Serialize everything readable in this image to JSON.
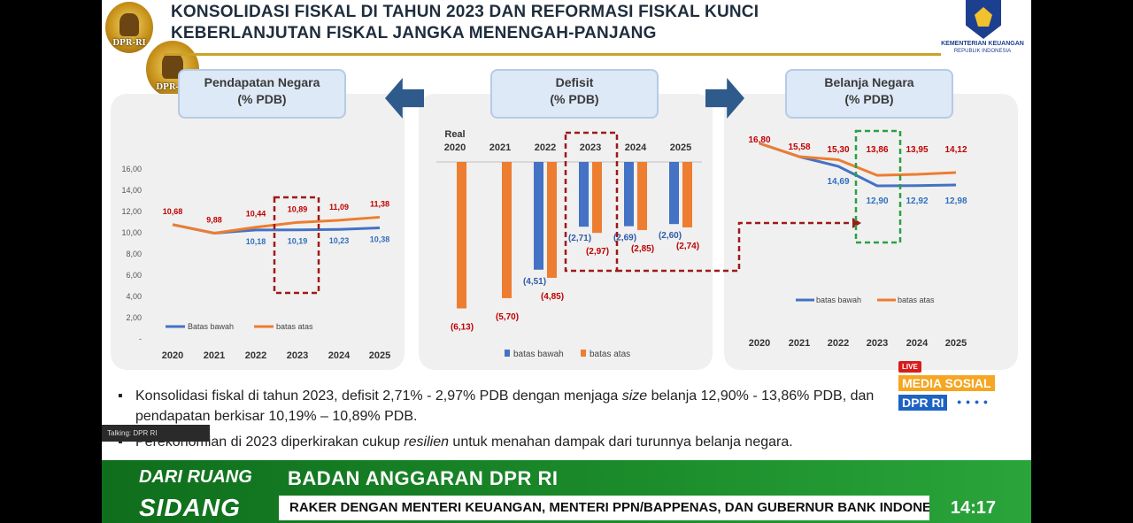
{
  "header": {
    "title_line1": "KONSOLIDASI FISKAL DI TAHUN 2023 DAN REFORMASI FISKAL KUNCI",
    "title_line2": "KEBERLANJUTAN FISKAL JANGKA MENENGAH-PANJANG",
    "seal_label": "DPR-RI",
    "ministry_line1": "KEMENTERIAN KEUANGAN",
    "ministry_line2": "REPUBLIK INDONESIA"
  },
  "panels": {
    "pendapatan_title_1": "Pendapatan Negara",
    "pendapatan_title_2": "(% PDB)",
    "defisit_title_1": "Defisit",
    "defisit_title_2": "(% PDB)",
    "belanja_title_1": "Belanja Negara",
    "belanja_title_2": "(% PDB)"
  },
  "chart_data": [
    {
      "type": "line",
      "name_ref": "Pendapatan Negara",
      "x": [
        "2020",
        "2021",
        "2022",
        "2023",
        "2024",
        "2025"
      ],
      "yticks": [
        "16,00",
        "14,00",
        "12,00",
        "10,00",
        "8,00",
        "6,00",
        "4,00",
        "2,00",
        "-"
      ],
      "ylim": [
        0,
        16
      ],
      "series": [
        {
          "name": "Batas bawah",
          "color": "#4472c4",
          "values": [
            10.68,
            9.88,
            10.18,
            10.19,
            10.23,
            10.38
          ],
          "labels": [
            "",
            "",
            "10,18",
            "10,19",
            "10,23",
            "10,38"
          ]
        },
        {
          "name": "batas atas",
          "color": "#ed7d31",
          "values": [
            10.68,
            9.88,
            10.44,
            10.89,
            11.09,
            11.38
          ],
          "labels": [
            "10,68",
            "9,88",
            "10,44",
            "10,89",
            "11,09",
            "11,38"
          ]
        }
      ],
      "highlight": "2023",
      "legend": "bottom"
    },
    {
      "type": "bar",
      "name_ref": "Defisit",
      "categories": [
        "Real\n2020",
        "2021",
        "2022",
        "2023",
        "2024",
        "2025"
      ],
      "series": [
        {
          "name": "batas bawah",
          "color": "#4472c4",
          "values": [
            null,
            null,
            -4.51,
            -2.71,
            -2.69,
            -2.6
          ],
          "labels": [
            "",
            "",
            "(4,51)",
            "(2,71)",
            "(2,69)",
            "(2,60)"
          ]
        },
        {
          "name": "batas atas",
          "color": "#ed7d31",
          "values": [
            -6.13,
            -5.7,
            -4.85,
            -2.97,
            -2.85,
            -2.74
          ],
          "labels": [
            "(6,13)",
            "(5,70)",
            "(4,85)",
            "(2,97)",
            "(2,85)",
            "(2,74)"
          ]
        }
      ],
      "highlight": "2023",
      "legend": "bottom"
    },
    {
      "type": "line",
      "name_ref": "Belanja Negara",
      "x": [
        "2020",
        "2021",
        "2022",
        "2023",
        "2024",
        "2025"
      ],
      "series": [
        {
          "name": "batas bawah",
          "color": "#4472c4",
          "values": [
            16.8,
            15.58,
            14.69,
            12.9,
            12.92,
            12.98
          ],
          "labels": [
            "",
            "",
            "14,69",
            "12,90",
            "12,92",
            "12,98"
          ]
        },
        {
          "name": "batas atas",
          "color": "#ed7d31",
          "values": [
            16.8,
            15.58,
            15.3,
            13.86,
            13.95,
            14.12
          ],
          "labels": [
            "16,80",
            "15,58",
            "15,30",
            "13,86",
            "13,95",
            "14,12"
          ]
        }
      ],
      "highlight": "2023",
      "legend": "bottom"
    }
  ],
  "bullets": {
    "b1_pre": "Konsolidasi fiskal di tahun 2023, defisit 2,71% - 2,97% PDB dengan menjaga ",
    "b1_em": "size",
    "b1_post": " belanja 12,90% - 13,86% PDB, dan",
    "b1_line2": "pendapatan berkisar 10,19% – 10,89% PDB.",
    "b2_pre": "Perekonomian di 2023 diperkirakan cukup ",
    "b2_em": "resilien",
    "b2_post": " untuk menahan dampak dari turunnya belanja negara."
  },
  "overlay": {
    "talking": "Talking: DPR RI",
    "live": "LIVE",
    "media_sosial": "MEDIA SOSIAL",
    "dpr_ri": "DPR RI",
    "dari_ruang": "DARI RUANG",
    "sidang": "SIDANG",
    "program": "BADAN ANGGARAN DPR RI",
    "ticker": "RAKER DENGAN MENTERI KEUANGAN, MENTERI PPN/BAPPENAS, DAN GUBERNUR BANK INDONESIA",
    "clock": "14:17"
  }
}
